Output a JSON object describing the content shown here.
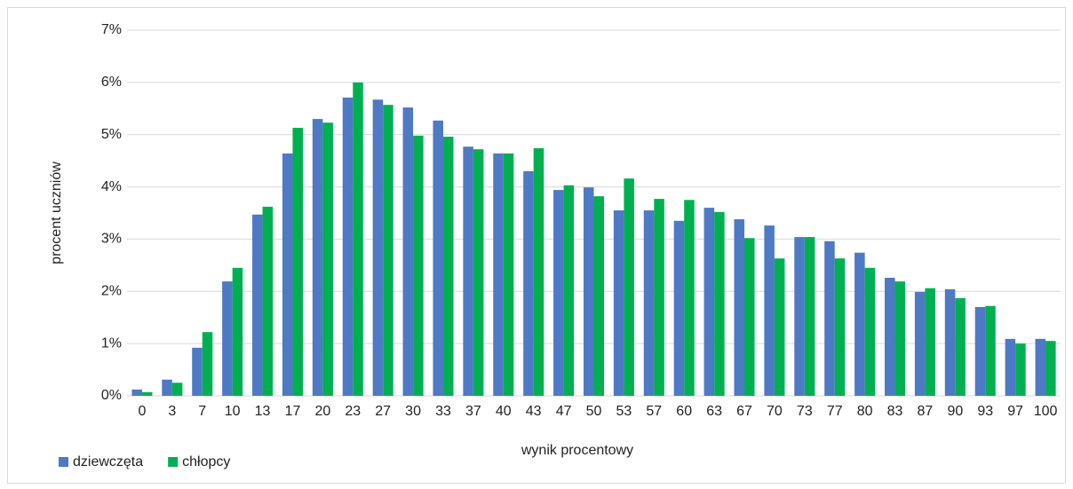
{
  "chart_data": {
    "type": "bar",
    "x_label": "wynik procentowy",
    "y_label": "procent uczniów",
    "categories": [
      "0",
      "3",
      "7",
      "10",
      "13",
      "17",
      "20",
      "23",
      "27",
      "30",
      "33",
      "37",
      "40",
      "43",
      "47",
      "50",
      "53",
      "57",
      "60",
      "63",
      "67",
      "70",
      "73",
      "77",
      "80",
      "83",
      "87",
      "90",
      "93",
      "97",
      "100"
    ],
    "series": [
      {
        "name": "dziewczęta",
        "color": "#4e79c4",
        "values": [
          0.12,
          0.31,
          0.92,
          2.19,
          3.47,
          4.64,
          5.3,
          5.71,
          5.67,
          5.52,
          5.27,
          4.77,
          4.64,
          4.3,
          3.94,
          3.99,
          3.55,
          3.55,
          3.35,
          3.6,
          3.38,
          3.26,
          3.04,
          2.96,
          2.74,
          2.26,
          1.99,
          2.04,
          1.7,
          1.09,
          1.09
        ]
      },
      {
        "name": "chłopcy",
        "color": "#00b050",
        "values": [
          0.07,
          0.25,
          1.22,
          2.45,
          3.62,
          5.13,
          5.23,
          6.0,
          5.57,
          4.98,
          4.96,
          4.72,
          4.64,
          4.74,
          4.03,
          3.82,
          4.16,
          3.77,
          3.75,
          3.52,
          3.02,
          2.63,
          3.04,
          2.63,
          2.45,
          2.19,
          2.06,
          1.87,
          1.72,
          1.0,
          1.05
        ]
      }
    ],
    "ylim": [
      0,
      7
    ],
    "yticks": [
      {
        "value": 0,
        "label": "0%"
      },
      {
        "value": 1,
        "label": "1%"
      },
      {
        "value": 2,
        "label": "2%"
      },
      {
        "value": 3,
        "label": "3%"
      },
      {
        "value": 4,
        "label": "4%"
      },
      {
        "value": 5,
        "label": "5%"
      },
      {
        "value": 6,
        "label": "6%"
      },
      {
        "value": 7,
        "label": "7%"
      }
    ],
    "grid": true,
    "legend": "bottom-left"
  }
}
